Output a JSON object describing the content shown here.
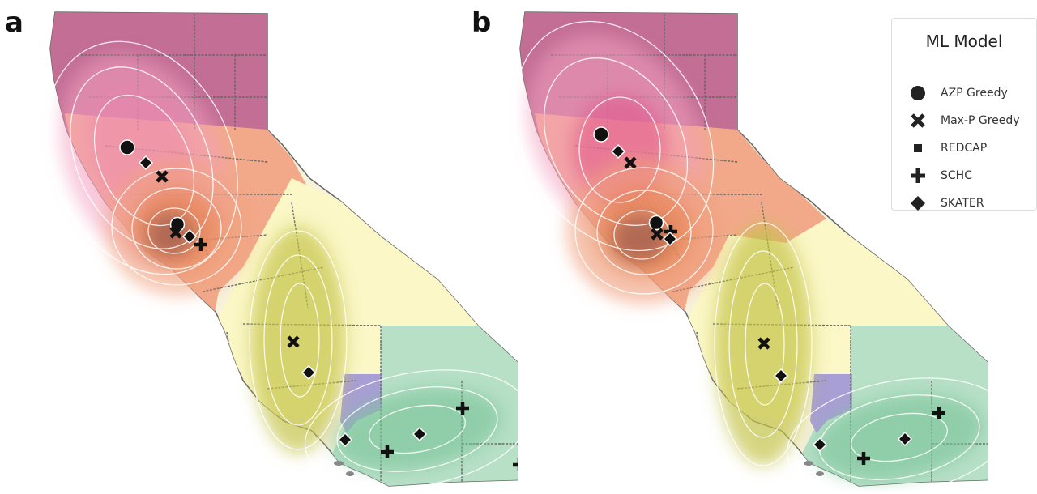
{
  "panels": [
    {
      "label": "a"
    },
    {
      "label": "b"
    }
  ],
  "legend": {
    "title": "ML Model",
    "items": [
      {
        "label": "AZP Greedy",
        "marker": "circle"
      },
      {
        "label": "Max-P Greedy",
        "marker": "x"
      },
      {
        "label": "REDCAP",
        "marker": "square"
      },
      {
        "label": "SCHC",
        "marker": "plus"
      },
      {
        "label": "SKATER",
        "marker": "diamond"
      }
    ]
  },
  "colors": {
    "north_region": "#c36e95",
    "sacramento_region": "#f2a98a",
    "central_region": "#fbf7c6",
    "southern_region": "#b7e0c7",
    "la_region": "#a89fd4",
    "density_pink": "#e85a8f",
    "density_orange": "#e7753a",
    "density_olive": "#c4c34a",
    "density_green": "#7bc49a",
    "county_border": "#555555",
    "contour": "#ffffff"
  }
}
